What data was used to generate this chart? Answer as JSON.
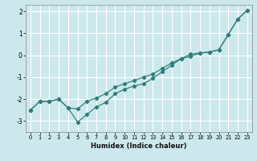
{
  "xlabel": "Humidex (Indice chaleur)",
  "xlim": [
    -0.5,
    23.5
  ],
  "ylim": [
    -3.5,
    2.3
  ],
  "yticks": [
    -3,
    -2,
    -1,
    0,
    1,
    2
  ],
  "xticks": [
    0,
    1,
    2,
    3,
    4,
    5,
    6,
    7,
    8,
    9,
    10,
    11,
    12,
    13,
    14,
    15,
    16,
    17,
    18,
    19,
    20,
    21,
    22,
    23
  ],
  "bg_color": "#cce8ec",
  "grid_color": "#ffffff",
  "line_color": "#2e7d7a",
  "series1_x": [
    0,
    1,
    2,
    3,
    4,
    5,
    6,
    7,
    8,
    9,
    10,
    11,
    12,
    13,
    14,
    15,
    16,
    17,
    18,
    19,
    20,
    21,
    22,
    23
  ],
  "series1_y": [
    -2.5,
    -2.1,
    -2.1,
    -2.0,
    -2.4,
    -3.05,
    -2.7,
    -2.35,
    -2.15,
    -1.75,
    -1.55,
    -1.4,
    -1.3,
    -1.05,
    -0.75,
    -0.45,
    -0.15,
    0.05,
    0.1,
    0.15,
    0.25,
    0.95,
    1.65,
    2.05
  ],
  "series2_x": [
    0,
    1,
    2,
    3,
    4,
    5,
    6,
    7,
    8,
    9,
    10,
    11,
    12,
    13,
    14,
    15,
    16,
    17,
    18,
    19,
    20,
    21,
    22,
    23
  ],
  "series2_y": [
    -2.5,
    -2.1,
    -2.1,
    -2.0,
    -2.4,
    -2.45,
    -2.1,
    -1.95,
    -1.75,
    -1.45,
    -1.3,
    -1.15,
    -1.0,
    -0.85,
    -0.6,
    -0.35,
    -0.15,
    -0.05,
    0.1,
    0.15,
    0.25,
    0.95,
    1.65,
    2.05
  ]
}
